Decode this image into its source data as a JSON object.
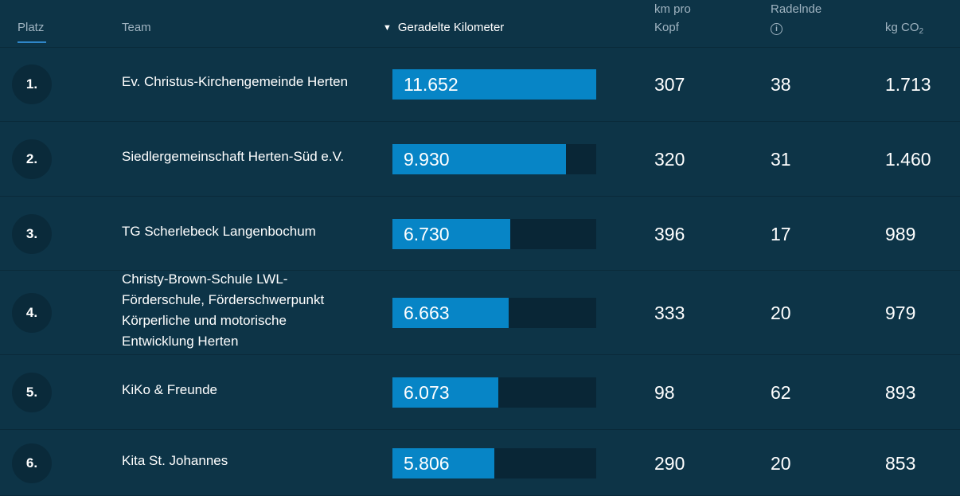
{
  "header": {
    "platz": "Platz",
    "team": "Team",
    "km": "Geradelte Kilometer",
    "km_pro_kopf": "km pro Kopf",
    "radelnde": "Radelnde",
    "co2_prefix": "kg CO",
    "co2_sub": "2"
  },
  "colors": {
    "background": "#0d3447",
    "bar_fill": "#0785c6",
    "bar_track": "#092636",
    "active_underline": "#2f86c8"
  },
  "rows": [
    {
      "rank": "1.",
      "team": "Ev. Christus-Kirchengemeinde Herten",
      "km": "11.652",
      "km_value": 11652,
      "km_pro_kopf": "307",
      "radelnde": "38",
      "co2": "1.713"
    },
    {
      "rank": "2.",
      "team": "Siedlergemeinschaft Herten-Süd e.V.",
      "km": "9.930",
      "km_value": 9930,
      "km_pro_kopf": "320",
      "radelnde": "31",
      "co2": "1.460"
    },
    {
      "rank": "3.",
      "team": "TG Scherlebeck Langenbochum",
      "km": "6.730",
      "km_value": 6730,
      "km_pro_kopf": "396",
      "radelnde": "17",
      "co2": "989"
    },
    {
      "rank": "4.",
      "team": "Christy-Brown-Schule LWL-Förderschule, Förderschwerpunkt Körperliche und motorische Entwicklung Herten",
      "km": "6.663",
      "km_value": 6663,
      "km_pro_kopf": "333",
      "radelnde": "20",
      "co2": "979"
    },
    {
      "rank": "5.",
      "team": "KiKo & Freunde",
      "km": "6.073",
      "km_value": 6073,
      "km_pro_kopf": "98",
      "radelnde": "62",
      "co2": "893"
    },
    {
      "rank": "6.",
      "team": "Kita St. Johannes",
      "km": "5.806",
      "km_value": 5806,
      "km_pro_kopf": "290",
      "radelnde": "20",
      "co2": "853"
    }
  ]
}
